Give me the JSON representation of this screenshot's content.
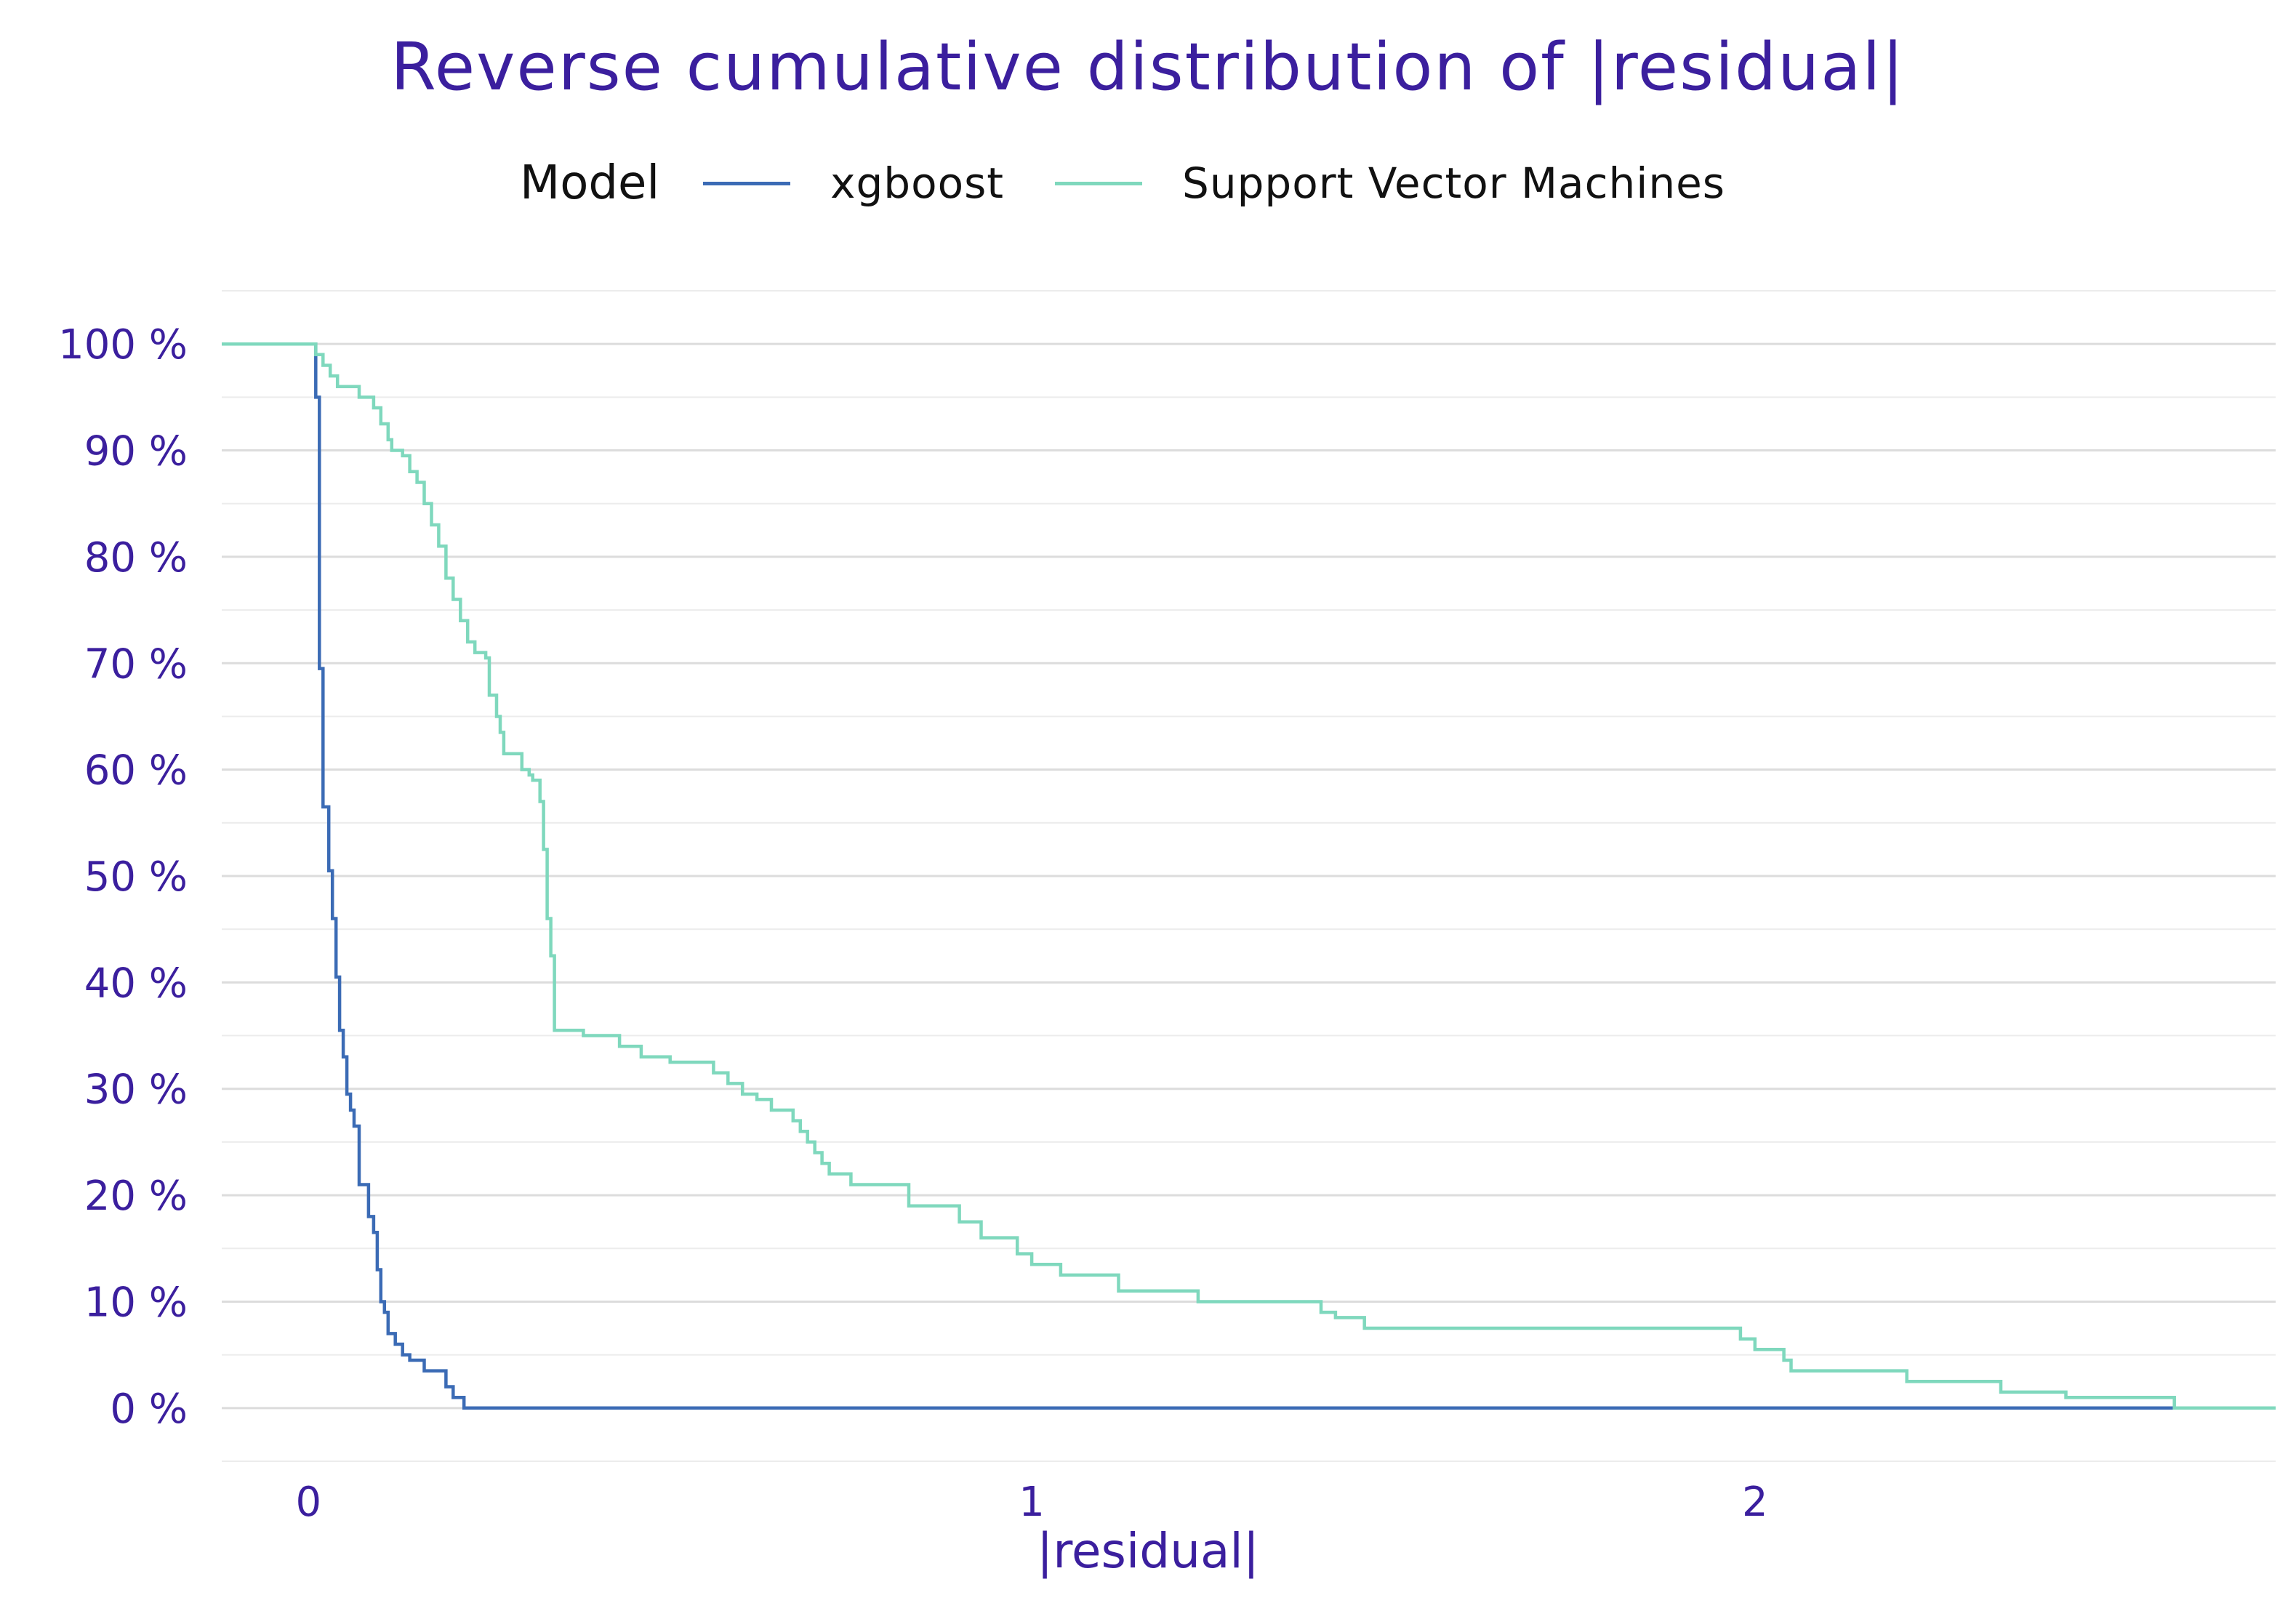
{
  "chart_data": {
    "type": "line",
    "step": true,
    "title": "Reverse cumulative distribution of |residual|",
    "xlabel": "|residual|",
    "ylabel": "",
    "legend": {
      "title": "Model",
      "position": "top"
    },
    "xlim": [
      -0.12,
      2.72
    ],
    "ylim": [
      -5,
      105
    ],
    "x_ticks": [
      0,
      1,
      2
    ],
    "x_tick_labels": [
      "0",
      "1",
      "2"
    ],
    "y_ticks": [
      0,
      10,
      20,
      30,
      40,
      50,
      60,
      70,
      80,
      90,
      100
    ],
    "y_tick_labels": [
      "0 %",
      "10 %",
      "20 %",
      "30 %",
      "40 %",
      "50 %",
      "60 %",
      "70 %",
      "80 %",
      "90 %",
      "100 %"
    ],
    "grid": true,
    "series": [
      {
        "name": "xgboost",
        "color": "#3b6bb5",
        "points": [
          [
            -0.12,
            100
          ],
          [
            0.01,
            100
          ],
          [
            0.01,
            95
          ],
          [
            0.015,
            95
          ],
          [
            0.015,
            69.5
          ],
          [
            0.02,
            69.5
          ],
          [
            0.02,
            56.5
          ],
          [
            0.028,
            56.5
          ],
          [
            0.028,
            50.5
          ],
          [
            0.033,
            50.5
          ],
          [
            0.033,
            46
          ],
          [
            0.038,
            46
          ],
          [
            0.038,
            40.5
          ],
          [
            0.043,
            40.5
          ],
          [
            0.043,
            35.5
          ],
          [
            0.048,
            35.5
          ],
          [
            0.048,
            33
          ],
          [
            0.053,
            33
          ],
          [
            0.053,
            29.5
          ],
          [
            0.058,
            29.5
          ],
          [
            0.058,
            28
          ],
          [
            0.063,
            28
          ],
          [
            0.063,
            26.5
          ],
          [
            0.07,
            26.5
          ],
          [
            0.07,
            21
          ],
          [
            0.083,
            21
          ],
          [
            0.083,
            18
          ],
          [
            0.09,
            18
          ],
          [
            0.09,
            16.5
          ],
          [
            0.095,
            16.5
          ],
          [
            0.095,
            13
          ],
          [
            0.1,
            13
          ],
          [
            0.1,
            10
          ],
          [
            0.105,
            10
          ],
          [
            0.105,
            9
          ],
          [
            0.11,
            9
          ],
          [
            0.11,
            7
          ],
          [
            0.12,
            7
          ],
          [
            0.12,
            6
          ],
          [
            0.13,
            6
          ],
          [
            0.13,
            5
          ],
          [
            0.14,
            5
          ],
          [
            0.14,
            4.5
          ],
          [
            0.16,
            4.5
          ],
          [
            0.16,
            3.5
          ],
          [
            0.19,
            3.5
          ],
          [
            0.19,
            2
          ],
          [
            0.2,
            2
          ],
          [
            0.2,
            1
          ],
          [
            0.215,
            1
          ],
          [
            0.215,
            0
          ],
          [
            2.58,
            0
          ]
        ]
      },
      {
        "name": "Support Vector Machines",
        "color": "#7fd8bd",
        "points": [
          [
            -0.12,
            100
          ],
          [
            0.01,
            100
          ],
          [
            0.01,
            99
          ],
          [
            0.02,
            99
          ],
          [
            0.02,
            98
          ],
          [
            0.03,
            98
          ],
          [
            0.03,
            97
          ],
          [
            0.04,
            97
          ],
          [
            0.04,
            96
          ],
          [
            0.07,
            96
          ],
          [
            0.07,
            95
          ],
          [
            0.09,
            95
          ],
          [
            0.09,
            94
          ],
          [
            0.1,
            94
          ],
          [
            0.1,
            92.5
          ],
          [
            0.11,
            92.5
          ],
          [
            0.11,
            91
          ],
          [
            0.115,
            91
          ],
          [
            0.115,
            90
          ],
          [
            0.13,
            90
          ],
          [
            0.13,
            89.5
          ],
          [
            0.14,
            89.5
          ],
          [
            0.14,
            88
          ],
          [
            0.15,
            88
          ],
          [
            0.15,
            87
          ],
          [
            0.16,
            87
          ],
          [
            0.16,
            85
          ],
          [
            0.17,
            85
          ],
          [
            0.17,
            83
          ],
          [
            0.18,
            83
          ],
          [
            0.18,
            81
          ],
          [
            0.19,
            81
          ],
          [
            0.19,
            78
          ],
          [
            0.2,
            78
          ],
          [
            0.2,
            76
          ],
          [
            0.21,
            76
          ],
          [
            0.21,
            74
          ],
          [
            0.22,
            74
          ],
          [
            0.22,
            72
          ],
          [
            0.23,
            72
          ],
          [
            0.23,
            71
          ],
          [
            0.245,
            71
          ],
          [
            0.245,
            70.5
          ],
          [
            0.25,
            70.5
          ],
          [
            0.25,
            67
          ],
          [
            0.26,
            67
          ],
          [
            0.26,
            65
          ],
          [
            0.265,
            65
          ],
          [
            0.265,
            63.5
          ],
          [
            0.27,
            63.5
          ],
          [
            0.27,
            61.5
          ],
          [
            0.295,
            61.5
          ],
          [
            0.295,
            60
          ],
          [
            0.305,
            60
          ],
          [
            0.305,
            59.5
          ],
          [
            0.31,
            59.5
          ],
          [
            0.31,
            59
          ],
          [
            0.32,
            59
          ],
          [
            0.32,
            57
          ],
          [
            0.325,
            57
          ],
          [
            0.325,
            52.5
          ],
          [
            0.33,
            52.5
          ],
          [
            0.33,
            46
          ],
          [
            0.335,
            46
          ],
          [
            0.335,
            42.5
          ],
          [
            0.34,
            42.5
          ],
          [
            0.34,
            35.5
          ],
          [
            0.38,
            35.5
          ],
          [
            0.38,
            35
          ],
          [
            0.43,
            35
          ],
          [
            0.43,
            34
          ],
          [
            0.46,
            34
          ],
          [
            0.46,
            33
          ],
          [
            0.5,
            33
          ],
          [
            0.5,
            32.5
          ],
          [
            0.56,
            32.5
          ],
          [
            0.56,
            31.5
          ],
          [
            0.58,
            31.5
          ],
          [
            0.58,
            30.5
          ],
          [
            0.6,
            30.5
          ],
          [
            0.6,
            29.5
          ],
          [
            0.62,
            29.5
          ],
          [
            0.62,
            29
          ],
          [
            0.64,
            29
          ],
          [
            0.64,
            28
          ],
          [
            0.67,
            28
          ],
          [
            0.67,
            27
          ],
          [
            0.68,
            27
          ],
          [
            0.68,
            26
          ],
          [
            0.69,
            26
          ],
          [
            0.69,
            25
          ],
          [
            0.7,
            25
          ],
          [
            0.7,
            24
          ],
          [
            0.71,
            24
          ],
          [
            0.71,
            23
          ],
          [
            0.72,
            23
          ],
          [
            0.72,
            22
          ],
          [
            0.75,
            22
          ],
          [
            0.75,
            21
          ],
          [
            0.83,
            21
          ],
          [
            0.83,
            19
          ],
          [
            0.9,
            19
          ],
          [
            0.9,
            17.5
          ],
          [
            0.93,
            17.5
          ],
          [
            0.93,
            16
          ],
          [
            0.98,
            16
          ],
          [
            0.98,
            14.5
          ],
          [
            1.0,
            14.5
          ],
          [
            1.0,
            13.5
          ],
          [
            1.04,
            13.5
          ],
          [
            1.04,
            12.5
          ],
          [
            1.12,
            12.5
          ],
          [
            1.12,
            11
          ],
          [
            1.23,
            11
          ],
          [
            1.23,
            10
          ],
          [
            1.4,
            10
          ],
          [
            1.4,
            9
          ],
          [
            1.42,
            9
          ],
          [
            1.42,
            8.5
          ],
          [
            1.46,
            8.5
          ],
          [
            1.46,
            7.5
          ],
          [
            1.98,
            7.5
          ],
          [
            1.98,
            6.5
          ],
          [
            2.0,
            6.5
          ],
          [
            2.0,
            5.5
          ],
          [
            2.04,
            5.5
          ],
          [
            2.04,
            4.5
          ],
          [
            2.05,
            4.5
          ],
          [
            2.05,
            3.5
          ],
          [
            2.21,
            3.5
          ],
          [
            2.21,
            2.5
          ],
          [
            2.34,
            2.5
          ],
          [
            2.34,
            1.5
          ],
          [
            2.43,
            1.5
          ],
          [
            2.43,
            1
          ],
          [
            2.58,
            1
          ],
          [
            2.58,
            0
          ],
          [
            2.72,
            0
          ]
        ]
      }
    ]
  }
}
